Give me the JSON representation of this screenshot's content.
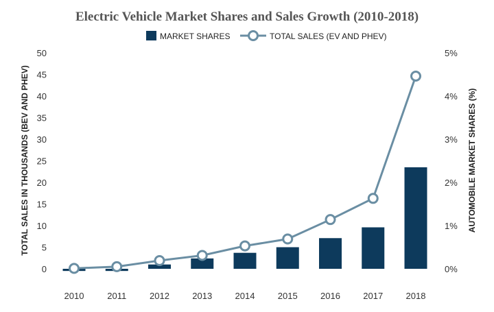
{
  "chart_data": {
    "type": "bar",
    "title": "Electric Vehicle Market Shares and Sales Growth (2010-2018)",
    "categories": [
      "2010",
      "2011",
      "2012",
      "2013",
      "2014",
      "2015",
      "2016",
      "2017",
      "2018"
    ],
    "series": [
      {
        "name": "MARKET SHARES",
        "type": "bar",
        "axis": "right",
        "color": "#0d3a5c",
        "values": [
          -0.05,
          -0.05,
          0.1,
          0.24,
          0.37,
          0.5,
          0.71,
          0.96,
          2.35
        ]
      },
      {
        "name": "TOTAL SALES (EV AND PHEV)",
        "type": "line",
        "axis": "left",
        "color": "#6a8ea3",
        "values": [
          0.1,
          0.5,
          1.9,
          3.1,
          5.3,
          6.9,
          11.4,
          16.3,
          44.6
        ]
      }
    ],
    "ylabel": "TOTAL SALES IN THOUSANDS (BEV AND PHEV)",
    "ylim": [
      0,
      50
    ],
    "yticks": [
      "0",
      "5",
      "10",
      "15",
      "20",
      "25",
      "30",
      "35",
      "40",
      "45",
      "50"
    ],
    "y2label": "AUTOMOBILE MARKET SHARES (%)",
    "y2lim": [
      0,
      5
    ],
    "y2ticks": [
      "0%",
      "1%",
      "2%",
      "3%",
      "4%",
      "5%"
    ],
    "legend_position": "top-center",
    "grid": false
  }
}
